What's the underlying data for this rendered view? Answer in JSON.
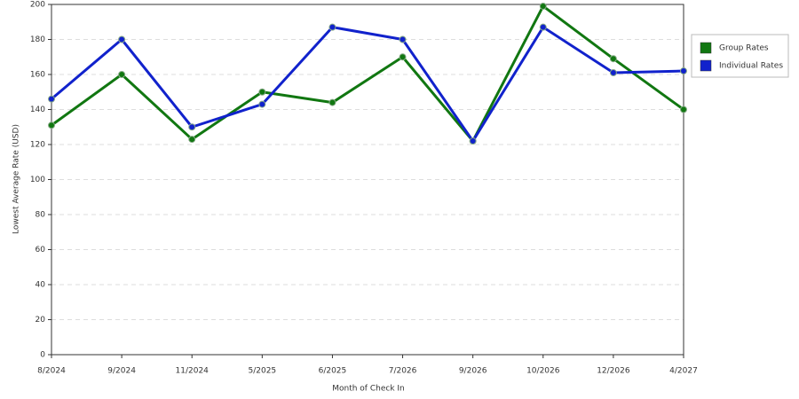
{
  "chart_data": {
    "type": "line",
    "x_label": "Month of Check In",
    "y_label": "Lowest Average Rate (USD)",
    "categories": [
      "8/2024",
      "9/2024",
      "11/2024",
      "5/2025",
      "6/2025",
      "7/2026",
      "9/2026",
      "10/2026",
      "12/2026",
      "4/2027"
    ],
    "series": [
      {
        "name": "Group Rates",
        "color": "#117711",
        "values": [
          131,
          160,
          123,
          150,
          144,
          170,
          122,
          199,
          169,
          140
        ]
      },
      {
        "name": "Individual Rates",
        "color": "#1122cc",
        "values": [
          146,
          180,
          130,
          143,
          187,
          180,
          122,
          187,
          161,
          162
        ]
      }
    ],
    "ylim": [
      0,
      200
    ],
    "yticks": [
      0,
      20,
      40,
      60,
      80,
      100,
      120,
      140,
      160,
      180,
      200
    ],
    "grid": true,
    "legend": "right"
  }
}
